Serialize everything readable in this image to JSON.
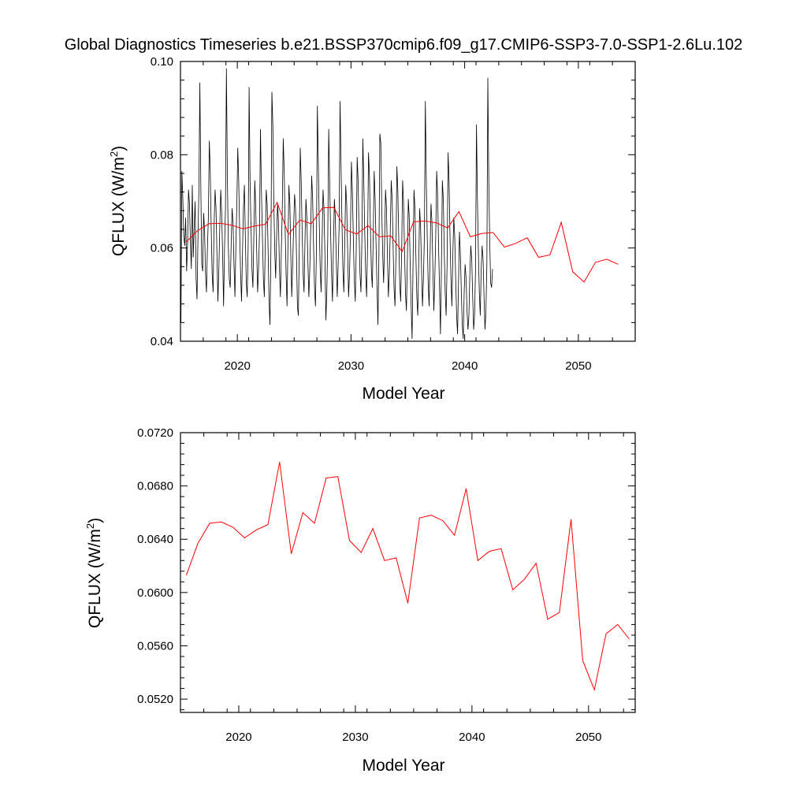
{
  "title": "Global Diagnostics Timeseries b.e21.BSSP370cmip6.f09_g17.CMIP6-SSP3-7.0-SSP1-2.6Lu.102",
  "colors": {
    "monthly": "#000000",
    "annual": "#ff0000",
    "axes": "#000000"
  },
  "chart_data": [
    {
      "type": "line",
      "title": "Global Diagnostics Timeseries b.e21.BSSP370cmip6.f09_g17.CMIP6-SSP3-7.0-SSP1-2.6Lu.102",
      "xlabel": "Model Year",
      "ylabel": "QFLUX (W/m",
      "ylabel_sup": "2",
      "ylabel_end": ")",
      "xlim": [
        2015,
        2055
      ],
      "ylim": [
        0.04,
        0.1
      ],
      "xticks": [
        2020,
        2030,
        2040,
        2050
      ],
      "xtick_labels": [
        "2020",
        "2030",
        "2040",
        "2050"
      ],
      "yticks": [
        0.04,
        0.06,
        0.08,
        0.1
      ],
      "ytick_labels": [
        "0.04",
        "0.06",
        "0.08",
        "0.10"
      ],
      "series": [
        {
          "color": "#000000",
          "x_start": 2015.04,
          "x_step": 0.08333,
          "values": [
            0.044,
            0.0765,
            0.0705,
            0.0625,
            0.0605,
            0.0665,
            0.055,
            0.061,
            0.0725,
            0.0695,
            0.0615,
            0.0555,
            0.0735,
            0.058,
            0.0645,
            0.07,
            0.0535,
            0.049,
            0.0625,
            0.0725,
            0.0955,
            0.0735,
            0.0565,
            0.055,
            0.0675,
            0.0635,
            0.0545,
            0.0505,
            0.06,
            0.0665,
            0.083,
            0.0765,
            0.064,
            0.0545,
            0.0505,
            0.0645,
            0.0725,
            0.0685,
            0.0585,
            0.0485,
            0.0555,
            0.0645,
            0.0725,
            0.0675,
            0.0585,
            0.0475,
            0.06,
            0.0685,
            0.0985,
            0.0755,
            0.0605,
            0.0535,
            0.0515,
            0.0605,
            0.0685,
            0.0655,
            0.0565,
            0.0495,
            0.0605,
            0.069,
            0.0815,
            0.0745,
            0.0635,
            0.0545,
            0.0485,
            0.059,
            0.0685,
            0.0735,
            0.0625,
            0.0525,
            0.0495,
            0.0605,
            0.0945,
            0.0745,
            0.0645,
            0.0555,
            0.0515,
            0.0625,
            0.0745,
            0.0685,
            0.0595,
            0.0505,
            0.0555,
            0.0635,
            0.0855,
            0.0725,
            0.0625,
            0.0535,
            0.0495,
            0.0605,
            0.0725,
            0.0695,
            0.0595,
            0.0485,
            0.0435,
            0.0605,
            0.0935,
            0.0865,
            0.0705,
            0.0595,
            0.0535,
            0.0625,
            0.0695,
            0.0655,
            0.0555,
            0.0495,
            0.0595,
            0.0685,
            0.0835,
            0.0765,
            0.0645,
            0.0545,
            0.0475,
            0.0605,
            0.0735,
            0.0695,
            0.0585,
            0.0495,
            0.0565,
            0.0645,
            0.0715,
            0.0685,
            0.0585,
            0.0475,
            0.0455,
            0.0605,
            0.0815,
            0.0745,
            0.0635,
            0.0545,
            0.0505,
            0.0615,
            0.0705,
            0.0665,
            0.0575,
            0.0495,
            0.0555,
            0.0645,
            0.0755,
            0.0705,
            0.0605,
            0.0515,
            0.0475,
            0.0595,
            0.0905,
            0.0785,
            0.0655,
            0.0555,
            0.0505,
            0.0615,
            0.0725,
            0.0685,
            0.0585,
            0.0445,
            0.0505,
            0.0625,
            0.0855,
            0.0745,
            0.0635,
            0.0545,
            0.0485,
            0.0605,
            0.0705,
            0.0665,
            0.0575,
            0.0495,
            0.0565,
            0.0645,
            0.0915,
            0.0785,
            0.0655,
            0.0555,
            0.0505,
            0.0615,
            0.0735,
            0.0695,
            0.0595,
            0.0495,
            0.0545,
            0.0635,
            0.0785,
            0.0725,
            0.0625,
            0.0535,
            0.0485,
            0.0595,
            0.0795,
            0.0745,
            0.0635,
            0.0545,
            0.0505,
            0.0615,
            0.0835,
            0.0745,
            0.0635,
            0.0545,
            0.0495,
            0.0605,
            0.0805,
            0.0755,
            0.0645,
            0.0555,
            0.0515,
            0.0625,
            0.0765,
            0.0705,
            0.0605,
            0.0515,
            0.0435,
            0.0585,
            0.0845,
            0.0825,
            0.0685,
            0.0585,
            0.0525,
            0.0615,
            0.0725,
            0.0685,
            0.0585,
            0.0495,
            0.0545,
            0.0635,
            0.0745,
            0.0705,
            0.0605,
            0.0515,
            0.0475,
            0.0585,
            0.0775,
            0.0725,
            0.0615,
            0.0525,
            0.0485,
            0.0595,
            0.0745,
            0.0695,
            0.0595,
            0.0505,
            0.0465,
            0.0575,
            0.0705,
            0.0665,
            0.0565,
            0.0475,
            0.0405,
            0.0565,
            0.0725,
            0.0685,
            0.0585,
            0.0495,
            0.0455,
            0.0565,
            0.0685,
            0.0645,
            0.0555,
            0.0475,
            0.0535,
            0.0625,
            0.0915,
            0.0745,
            0.0625,
            0.0525,
            0.0475,
            0.0585,
            0.0695,
            0.0655,
            0.0555,
            0.0465,
            0.0535,
            0.0625,
            0.0765,
            0.0715,
            0.0605,
            0.0515,
            0.0415,
            0.0555,
            0.0745,
            0.0705,
            0.0595,
            0.0505,
            0.0455,
            0.0565,
            0.0805,
            0.0745,
            0.0625,
            0.0535,
            0.0475,
            0.0585,
            0.0665,
            0.0625,
            0.0535,
            0.0455,
            0.0415,
            0.0525,
            0.0635,
            0.0585,
            0.0505,
            0.0435,
            0.0405,
            0.0505,
            0.0565,
            0.0535,
            0.0465,
            0.0425,
            0.0455,
            0.0545,
            0.0605,
            0.0575,
            0.0495,
            0.0425,
            0.0455,
            0.0555,
            0.0865,
            0.0705,
            0.0595,
            0.0505,
            0.0455,
            0.0555,
            0.0605,
            0.0575,
            0.0495,
            0.0425,
            0.0465,
            0.0565,
            0.0965,
            0.0745,
            0.0615,
            0.0525,
            0.0515,
            0.0555
          ]
        },
        {
          "color": "#ff0000",
          "x": [
            2015.5,
            2016.5,
            2017.5,
            2018.5,
            2019.5,
            2020.5,
            2021.5,
            2022.5,
            2023.5,
            2024.5,
            2025.5,
            2026.5,
            2027.5,
            2028.5,
            2029.5,
            2030.5,
            2031.5,
            2032.5,
            2033.5,
            2034.5,
            2035.5,
            2036.5,
            2037.5,
            2038.5,
            2039.5,
            2040.5,
            2041.5,
            2042.5,
            2043.5,
            2044.5,
            2045.5,
            2046.5,
            2047.5,
            2048.5,
            2049.5,
            2050.5,
            2051.5,
            2052.5,
            2053.5
          ],
          "values": [
            0.0613,
            0.0637,
            0.0652,
            0.0653,
            0.0649,
            0.0641,
            0.0647,
            0.0651,
            0.0698,
            0.0629,
            0.066,
            0.0652,
            0.0686,
            0.0687,
            0.0639,
            0.063,
            0.0648,
            0.0624,
            0.0626,
            0.0592,
            0.0656,
            0.0658,
            0.0654,
            0.0643,
            0.0678,
            0.0624,
            0.0631,
            0.0633,
            0.0602,
            0.061,
            0.0622,
            0.058,
            0.0585,
            0.0655,
            0.0549,
            0.0527,
            0.0569,
            0.0576,
            0.0565
          ]
        }
      ]
    },
    {
      "type": "line",
      "xlabel": "Model Year",
      "ylabel": "QFLUX (W/m",
      "ylabel_sup": "2",
      "ylabel_end": ")",
      "xlim": [
        2015,
        2054
      ],
      "ylim": [
        0.051,
        0.072
      ],
      "xticks": [
        2020,
        2030,
        2040,
        2050
      ],
      "xtick_labels": [
        "2020",
        "2030",
        "2040",
        "2050"
      ],
      "yticks": [
        0.052,
        0.056,
        0.06,
        0.064,
        0.068,
        0.072
      ],
      "ytick_labels": [
        "0.0520",
        "0.0560",
        "0.0600",
        "0.0640",
        "0.0680",
        "0.0720"
      ],
      "series": [
        {
          "color": "#ff0000",
          "x": [
            2015.5,
            2016.5,
            2017.5,
            2018.5,
            2019.5,
            2020.5,
            2021.5,
            2022.5,
            2023.5,
            2024.5,
            2025.5,
            2026.5,
            2027.5,
            2028.5,
            2029.5,
            2030.5,
            2031.5,
            2032.5,
            2033.5,
            2034.5,
            2035.5,
            2036.5,
            2037.5,
            2038.5,
            2039.5,
            2040.5,
            2041.5,
            2042.5,
            2043.5,
            2044.5,
            2045.5,
            2046.5,
            2047.5,
            2048.5,
            2049.5,
            2050.5,
            2051.5,
            2052.5,
            2053.5
          ],
          "values": [
            0.0613,
            0.0637,
            0.0652,
            0.0653,
            0.0649,
            0.0641,
            0.0647,
            0.0651,
            0.0698,
            0.0629,
            0.066,
            0.0652,
            0.0686,
            0.0687,
            0.0639,
            0.063,
            0.0648,
            0.0624,
            0.0626,
            0.0592,
            0.0656,
            0.0658,
            0.0654,
            0.0643,
            0.0678,
            0.0624,
            0.0631,
            0.0633,
            0.0602,
            0.061,
            0.0622,
            0.058,
            0.0585,
            0.0655,
            0.0549,
            0.0527,
            0.0569,
            0.0576,
            0.0565
          ]
        }
      ]
    }
  ]
}
